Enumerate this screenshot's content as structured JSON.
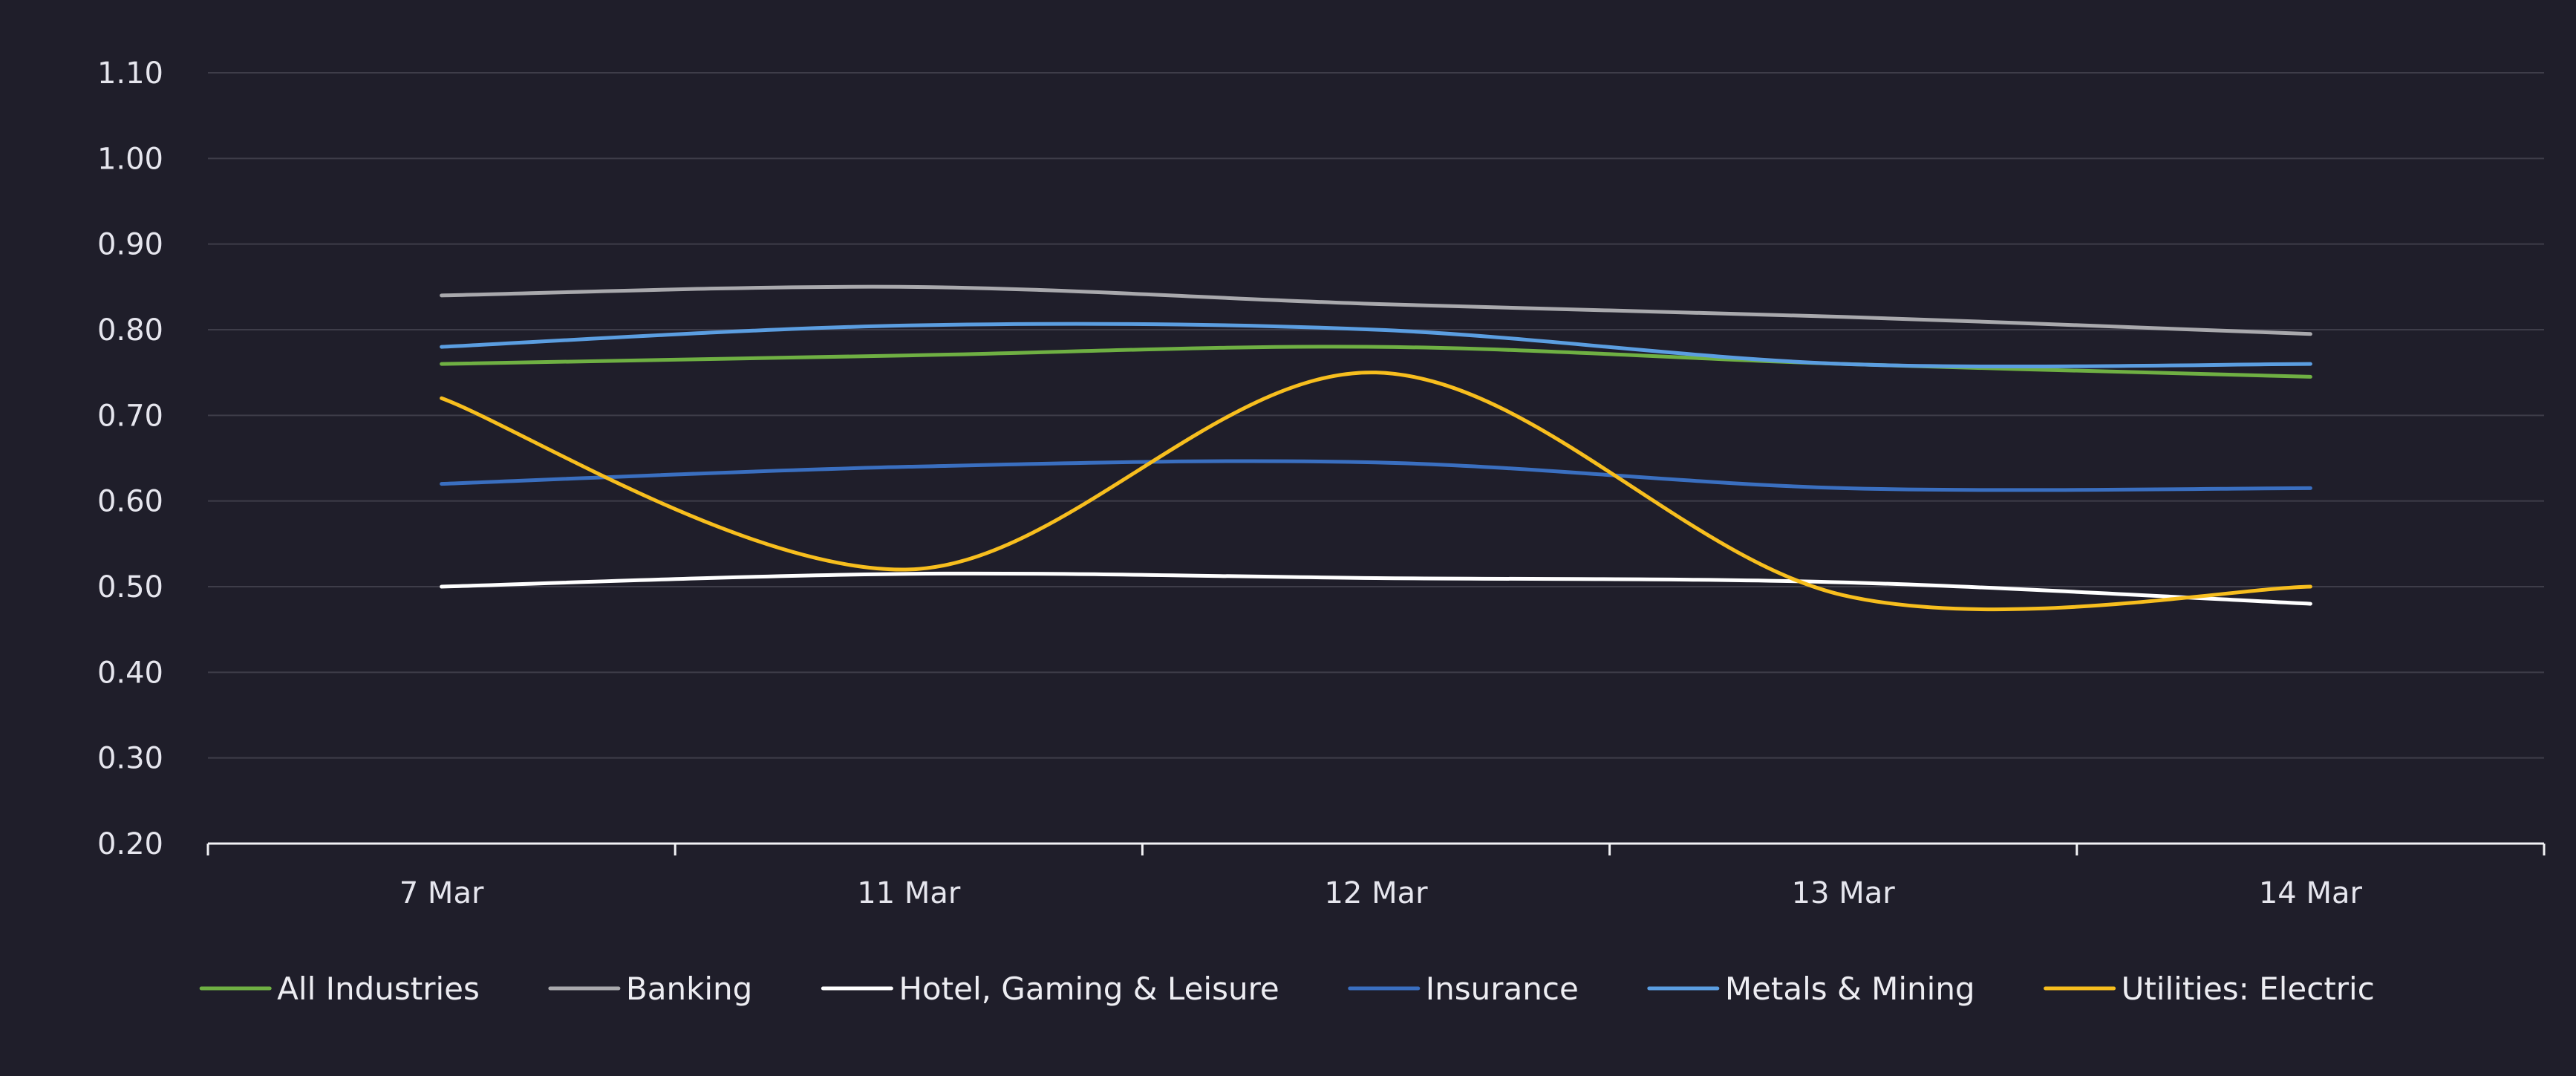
{
  "chart_data": {
    "type": "line",
    "title": "",
    "xlabel": "",
    "ylabel": "",
    "categories": [
      "7 Mar",
      "11 Mar",
      "12 Mar",
      "13 Mar",
      "14 Mar"
    ],
    "ylim": [
      0.2,
      1.1
    ],
    "yticks": [
      "0.20",
      "0.30",
      "0.40",
      "0.50",
      "0.60",
      "0.70",
      "0.80",
      "0.90",
      "1.00",
      "1.10"
    ],
    "grid": true,
    "smooth": true,
    "legend_position": "bottom",
    "background": "#1f1e2a",
    "gridline_color": "#3e3d49",
    "axis_color": "#f2f2f5",
    "series": [
      {
        "name": "All Industries",
        "color": "#6fb043",
        "values": [
          0.76,
          0.77,
          0.78,
          0.76,
          0.745
        ]
      },
      {
        "name": "Banking",
        "color": "#a9a9ad",
        "values": [
          0.84,
          0.85,
          0.83,
          0.815,
          0.795
        ]
      },
      {
        "name": "Hotel, Gaming & Leisure",
        "color": "#ffffff",
        "values": [
          0.5,
          0.515,
          0.51,
          0.505,
          0.48
        ]
      },
      {
        "name": "Insurance",
        "color": "#3a6fc0",
        "values": [
          0.62,
          0.64,
          0.645,
          0.615,
          0.615
        ]
      },
      {
        "name": "Metals & Mining",
        "color": "#5b9ee1",
        "values": [
          0.78,
          0.805,
          0.8,
          0.76,
          0.76
        ]
      },
      {
        "name": "Utilities: Electric",
        "color": "#f7be1e",
        "values": [
          0.72,
          0.52,
          0.75,
          0.49,
          0.5
        ]
      }
    ]
  }
}
